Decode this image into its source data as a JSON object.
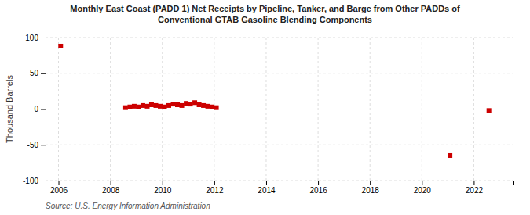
{
  "chart_data": {
    "type": "scatter",
    "title": "Monthly East Coast (PADD 1) Net Receipts by Pipeline, Tanker, and Barge from Other PADDs of\nConventional GTAB Gasoline Blending Components",
    "ylabel": "Thousand Barrels",
    "source": "Source: U.S. Energy Information Administration",
    "x": [
      2006.083,
      2008.583,
      2008.75,
      2008.917,
      2009.083,
      2009.25,
      2009.417,
      2009.583,
      2009.75,
      2009.917,
      2010.083,
      2010.25,
      2010.417,
      2010.583,
      2010.75,
      2010.917,
      2011.083,
      2011.25,
      2011.417,
      2011.583,
      2011.75,
      2011.917,
      2012.083,
      2021.083,
      2022.583
    ],
    "values": [
      88,
      2,
      3,
      4,
      3,
      5,
      4,
      6,
      5,
      4,
      3,
      5,
      7,
      6,
      5,
      8,
      7,
      9,
      6,
      5,
      4,
      3,
      2,
      -65,
      -2
    ],
    "xlim": [
      2005.5,
      2023.5
    ],
    "ylim": [
      -100,
      100
    ],
    "xticks": [
      2006,
      2008,
      2010,
      2012,
      2014,
      2016,
      2018,
      2020,
      2022
    ],
    "yticks": [
      -100,
      -50,
      0,
      50,
      100
    ],
    "grid": true,
    "color": "#cc0000",
    "marker": "square"
  }
}
